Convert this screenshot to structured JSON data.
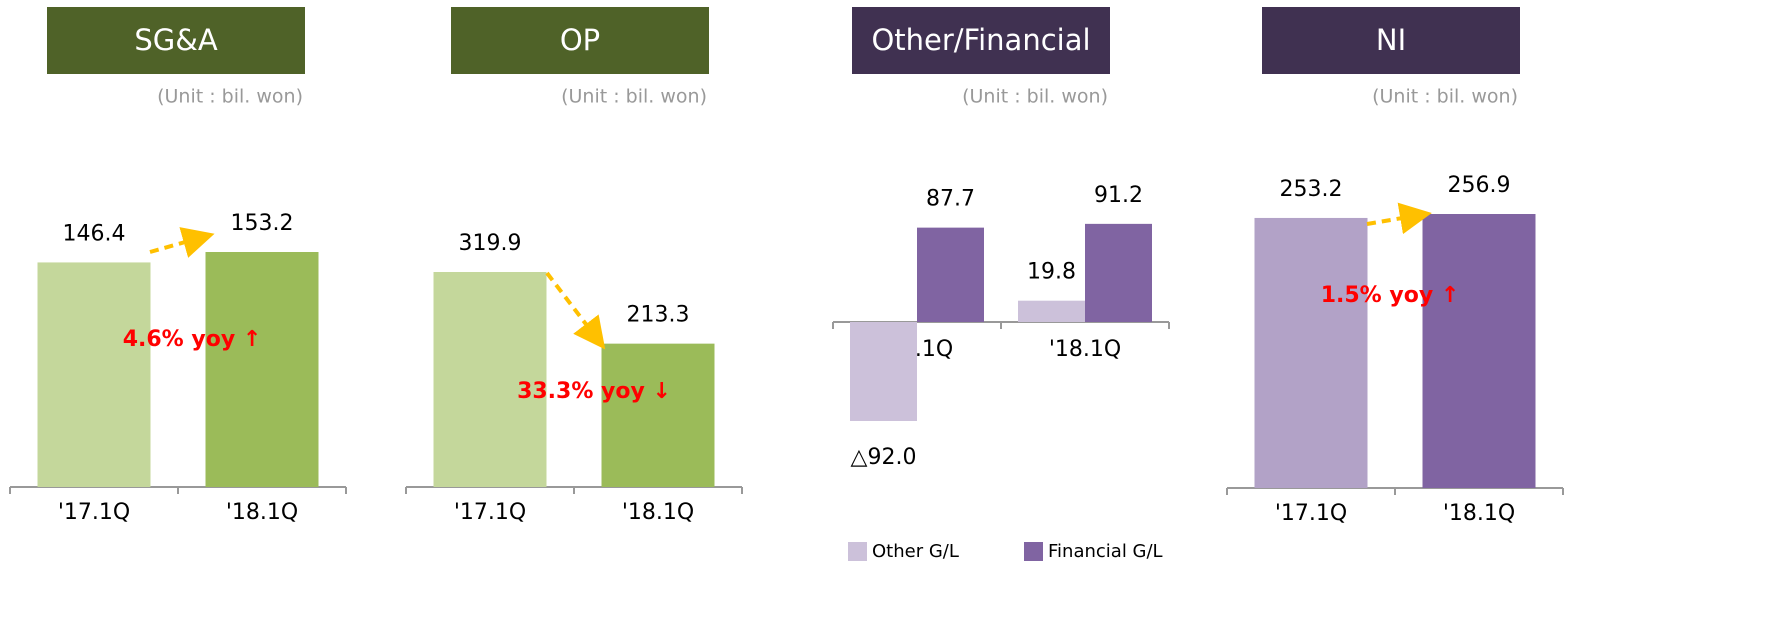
{
  "chart_data": [
    {
      "type": "bar",
      "title": "SG&A",
      "subtitle": "(Unit : bil. won)",
      "header_color": "#4f6228",
      "categories": [
        "'17.1Q",
        "'18.1Q"
      ],
      "values": [
        146.4,
        153.2
      ],
      "colors": [
        "#c4d79b",
        "#9bbb59"
      ],
      "annotation": "4.6% yoy ↑",
      "annotation_color": "#ff0000"
    },
    {
      "type": "bar",
      "title": "OP",
      "subtitle": "(Unit : bil. won)",
      "header_color": "#4f6228",
      "categories": [
        "'17.1Q",
        "'18.1Q"
      ],
      "values": [
        319.9,
        213.3
      ],
      "colors": [
        "#c4d79b",
        "#9bbb59"
      ],
      "annotation": "33.3% yoy ↓",
      "annotation_color": "#ff0000"
    },
    {
      "type": "bar",
      "title": "Other/Financial",
      "subtitle": "(Unit : bil. won)",
      "header_color": "#403151",
      "categories": [
        "'17.1Q",
        "'18.1Q"
      ],
      "series": [
        {
          "name": "Other G/L",
          "color": "#ccc1da",
          "values": [
            -92.0,
            19.8
          ],
          "value_labels": [
            "△92.0",
            "19.8"
          ]
        },
        {
          "name": "Financial G/L",
          "color": "#8064a2",
          "values": [
            87.7,
            91.2
          ]
        }
      ],
      "legend": "bottom"
    },
    {
      "type": "bar",
      "title": "NI",
      "subtitle": "(Unit : bil. won)",
      "header_color": "#403151",
      "categories": [
        "'17.1Q",
        "'18.1Q"
      ],
      "values": [
        253.2,
        256.9
      ],
      "colors": [
        "#b2a2c7",
        "#8064a2"
      ],
      "annotation": "1.5% yoy ↑",
      "annotation_color": "#ff0000"
    }
  ]
}
